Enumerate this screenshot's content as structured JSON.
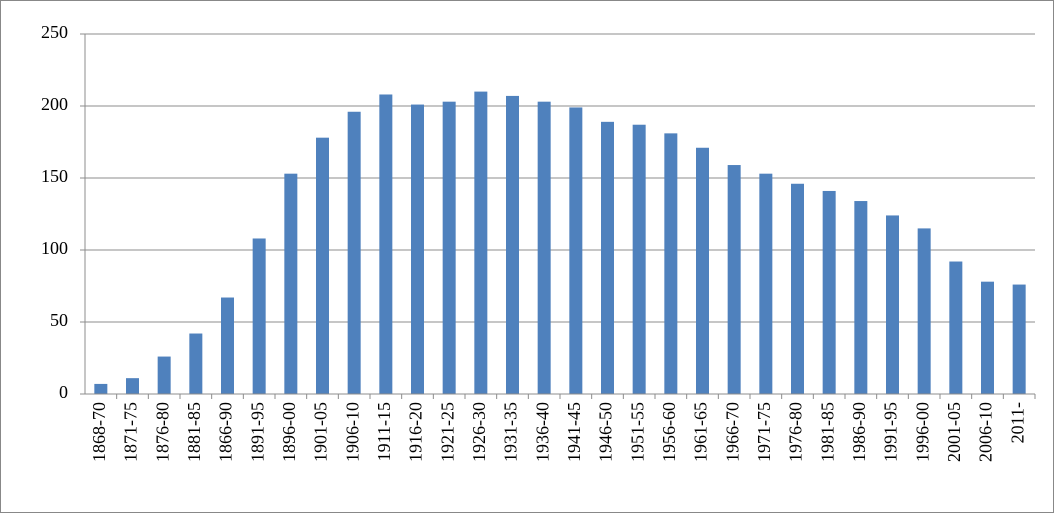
{
  "chart_data": {
    "type": "bar",
    "categories": [
      "1868-70",
      "1871-75",
      "1876-80",
      "1881-85",
      "1866-90",
      "1891-95",
      "1896-00",
      "1901-05",
      "1906-10",
      "1911-15",
      "1916-20",
      "1921-25",
      "1926-30",
      "1931-35",
      "1936-40",
      "1941-45",
      "1946-50",
      "1951-55",
      "1956-60",
      "1961-65",
      "1966-70",
      "1971-75",
      "1976-80",
      "1981-85",
      "1986-90",
      "1991-95",
      "1996-00",
      "2001-05",
      "2006-10",
      "2011-"
    ],
    "values": [
      7,
      11,
      26,
      42,
      67,
      108,
      153,
      178,
      196,
      208,
      201,
      203,
      210,
      207,
      203,
      199,
      189,
      187,
      181,
      171,
      159,
      153,
      146,
      141,
      134,
      124,
      115,
      92,
      78,
      76
    ],
    "color": "#4f81bd",
    "ylim": [
      0,
      250
    ],
    "yticks": [
      0,
      50,
      100,
      150,
      200,
      250
    ],
    "grid": true
  }
}
